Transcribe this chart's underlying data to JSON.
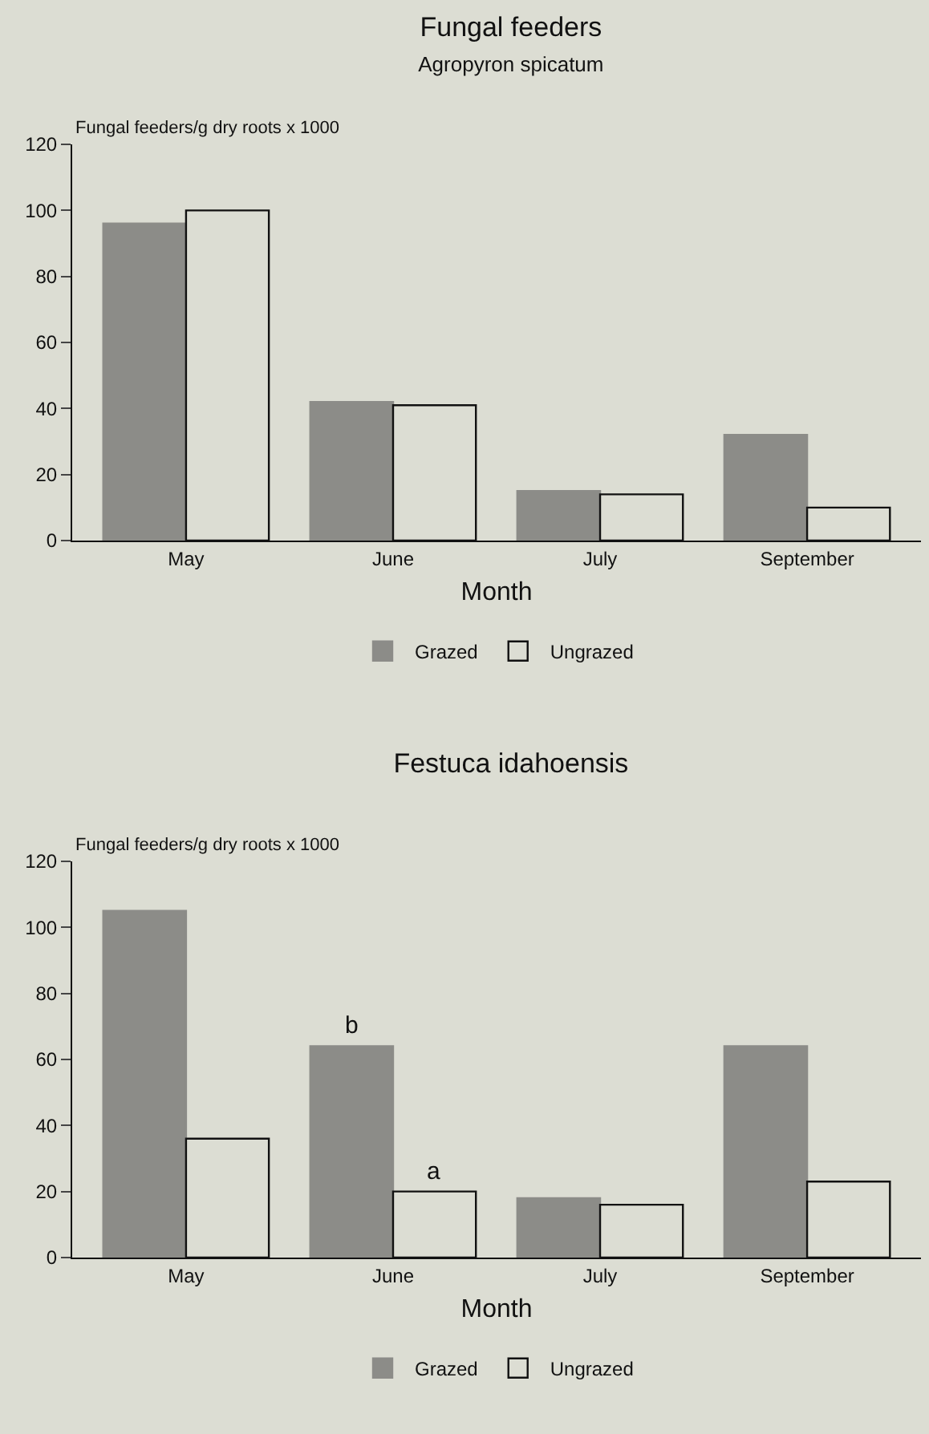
{
  "chart_data": [
    {
      "type": "bar",
      "title": "Fungal feeders",
      "subtitle": "Agropyron spicatum",
      "xlabel": "Month",
      "ylabel": "Fungal feeders/g dry roots x 1000",
      "categories": [
        "May",
        "June",
        "July",
        "September"
      ],
      "ylim": [
        0,
        120
      ],
      "yticks": [
        0,
        20,
        40,
        60,
        80,
        100,
        120
      ],
      "grid": false,
      "legend": "bottom",
      "series": [
        {
          "name": "Grazed",
          "color": "#8c8c88",
          "values": [
            96,
            42,
            15,
            32
          ]
        },
        {
          "name": "Ungrazed",
          "color": "#dcddd3",
          "values": [
            100,
            41,
            14,
            10
          ]
        }
      ]
    },
    {
      "type": "bar",
      "title": "Festuca idahoensis",
      "xlabel": "Month",
      "ylabel": "Fungal feeders/g dry roots x 1000",
      "categories": [
        "May",
        "June",
        "July",
        "September"
      ],
      "ylim": [
        0,
        120
      ],
      "yticks": [
        0,
        20,
        40,
        60,
        80,
        100,
        120
      ],
      "grid": false,
      "legend": "bottom",
      "annotations": [
        {
          "text": "b",
          "x": "June",
          "y": 64
        },
        {
          "text": "a",
          "x": "June",
          "y": 20
        }
      ],
      "series": [
        {
          "name": "Grazed",
          "color": "#8c8c88",
          "values": [
            105,
            64,
            18,
            64
          ]
        },
        {
          "name": "Ungrazed",
          "color": "#dcddd3",
          "values": [
            36,
            20,
            16,
            23
          ]
        }
      ]
    }
  ]
}
